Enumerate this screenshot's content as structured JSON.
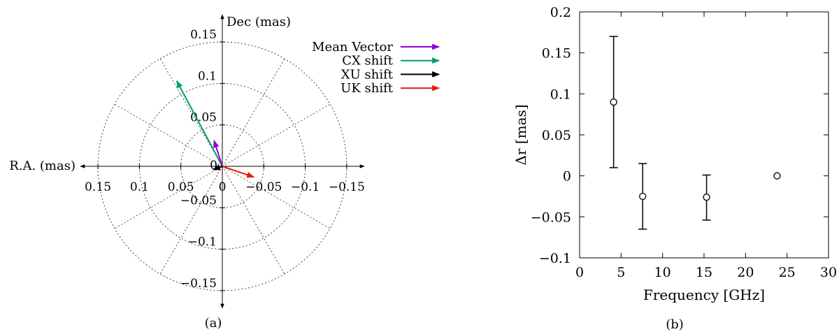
{
  "chart_data": [
    {
      "type": "vector",
      "caption": "(a)",
      "xlabel": "R.A. (mas)",
      "ylabel": "Dec (mas)",
      "xlim": [
        0.17,
        -0.17
      ],
      "ylim": [
        -0.17,
        0.17
      ],
      "x_reversed": true,
      "radial_rings": [
        0.05,
        0.1,
        0.15
      ],
      "spoke_angles_deg": [
        0,
        30,
        60,
        90,
        120,
        150,
        180,
        210,
        240,
        270,
        300,
        330
      ],
      "grid": true,
      "legend": "top-right",
      "x_ticks": [
        0.15,
        0.1,
        0.05,
        0,
        -0.05,
        -0.1,
        -0.15
      ],
      "x_tick_labels": [
        "0.15",
        "0.1",
        "0.05",
        "0",
        "−0.05",
        "−0.1",
        "−0.15"
      ],
      "y_ticks": [
        0.15,
        0.1,
        0.05,
        0,
        -0.05,
        -0.1,
        -0.15
      ],
      "y_tick_labels": [
        "0.15",
        "0.1",
        "0.05",
        "0",
        "−0.05",
        "−0.1",
        "−0.15"
      ],
      "series": [
        {
          "name": "Mean Vector",
          "color": "#9400d3",
          "dx": 0.01,
          "dy": 0.031
        },
        {
          "name": "CX shift",
          "color": "#009e73",
          "dx": 0.055,
          "dy": 0.103
        },
        {
          "name": "XU shift",
          "color": "#000000",
          "dx": 0.011,
          "dy": -0.004
        },
        {
          "name": "UK shift",
          "color": "#e51e10",
          "dx": -0.038,
          "dy": -0.013
        }
      ]
    },
    {
      "type": "scatter",
      "caption": "(b)",
      "xlabel": "Frequency [GHz]",
      "ylabel": "Δr [mas]",
      "xlim": [
        0,
        30
      ],
      "ylim": [
        -0.1,
        0.2
      ],
      "grid": false,
      "x_ticks": [
        0,
        5,
        10,
        15,
        20,
        25,
        30
      ],
      "x_tick_labels": [
        "0",
        "5",
        "10",
        "15",
        "20",
        "25",
        "30"
      ],
      "y_ticks": [
        -0.1,
        -0.05,
        0,
        0.05,
        0.1,
        0.15,
        0.2
      ],
      "y_tick_labels": [
        "−0.1",
        "−0.05",
        "0",
        "0.05",
        "0.1",
        "0.15",
        "0.2"
      ],
      "points": [
        {
          "x": 4.1,
          "y": 0.09,
          "err_low": 0.01,
          "err_high": 0.17
        },
        {
          "x": 7.6,
          "y": -0.025,
          "err_low": -0.065,
          "err_high": 0.015
        },
        {
          "x": 15.3,
          "y": -0.026,
          "err_low": -0.054,
          "err_high": 0.001
        },
        {
          "x": 23.8,
          "y": 0.0,
          "err_low": 0.0,
          "err_high": 0.0
        }
      ]
    }
  ]
}
